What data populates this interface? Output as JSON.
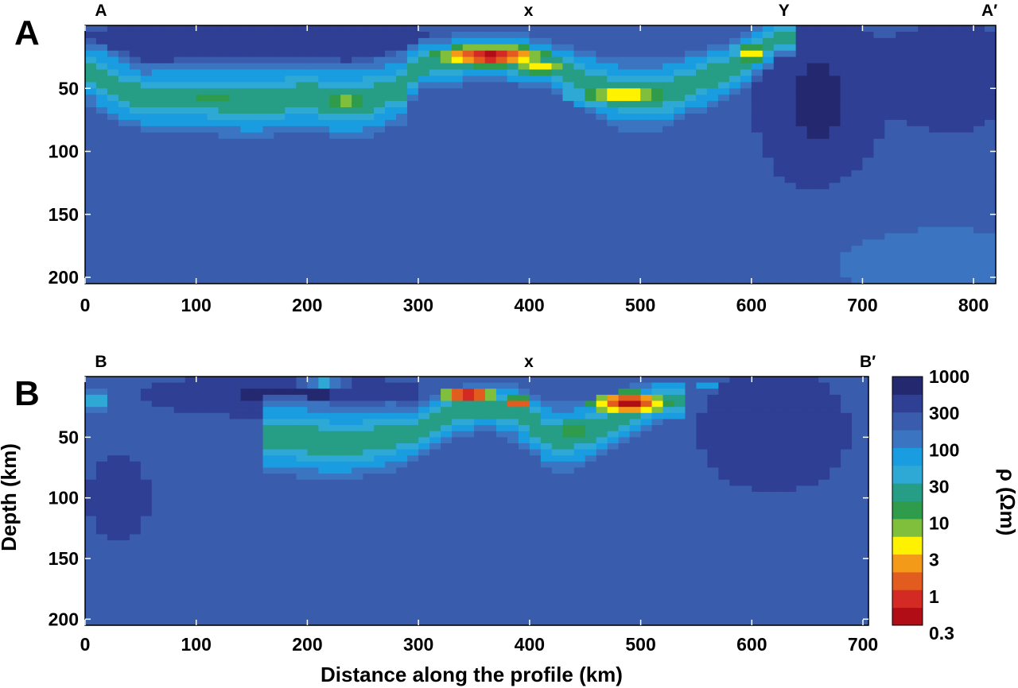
{
  "chart_data": [
    {
      "type": "heatmap",
      "panel_label": "A",
      "profile_marks": [
        {
          "label": "A",
          "x": 0
        },
        {
          "label": "x",
          "x": 385
        },
        {
          "label": "Y",
          "x": 615
        },
        {
          "label": "A′",
          "x": 800
        }
      ],
      "xlim": [
        0,
        820
      ],
      "ylim": [
        205,
        0
      ],
      "x_ticks": [
        0,
        100,
        200,
        300,
        400,
        500,
        600,
        700,
        800
      ],
      "y_ticks": [
        50,
        100,
        150,
        200
      ],
      "xlabel": "",
      "ylabel": "",
      "conductors": [
        {
          "x": [
            0,
            25,
            50,
            100,
            150,
            200,
            240,
            285,
            300,
            330,
            360,
            390,
            420,
            450,
            480,
            520,
            560,
            600,
            625
          ],
          "y": [
            35,
            48,
            58,
            57,
            60,
            56,
            62,
            50,
            32,
            28,
            24,
            27,
            32,
            45,
            55,
            55,
            42,
            25,
            10
          ],
          "w": [
            14,
            16,
            15,
            16,
            18,
            16,
            18,
            16,
            12,
            12,
            12,
            12,
            12,
            14,
            16,
            16,
            14,
            12,
            9
          ]
        }
      ],
      "blobs": [
        {
          "x": 365,
          "y": 24,
          "rx": 36,
          "ry": 6,
          "log10_rho": -0.4
        },
        {
          "x": 485,
          "y": 55,
          "rx": 40,
          "ry": 8,
          "log10_rho": 0.4
        },
        {
          "x": 410,
          "y": 34,
          "rx": 28,
          "ry": 5,
          "log10_rho": 0.5
        },
        {
          "x": 235,
          "y": 60,
          "rx": 22,
          "ry": 9,
          "log10_rho": 0.85
        },
        {
          "x": 115,
          "y": 58,
          "rx": 50,
          "ry": 8,
          "log10_rho": 1.15
        },
        {
          "x": 600,
          "y": 22,
          "rx": 16,
          "ry": 8,
          "log10_rho": 0.55
        }
      ],
      "resistive_zones": [
        {
          "x": 660,
          "y": 60,
          "rx": 40,
          "ry": 55,
          "log10_rho": 2.85
        },
        {
          "x": 780,
          "y": 40,
          "rx": 50,
          "ry": 35,
          "log10_rho": 2.7
        },
        {
          "x": 160,
          "y": 20,
          "rx": 150,
          "ry": 18,
          "log10_rho": 2.75
        },
        {
          "x": 770,
          "y": 190,
          "rx": 140,
          "ry": 45,
          "log10_rho": 2.15
        }
      ],
      "background_log10_rho": 2.45
    },
    {
      "type": "heatmap",
      "panel_label": "B",
      "profile_marks": [
        {
          "label": "B",
          "x": 0
        },
        {
          "label": "x",
          "x": 385
        },
        {
          "label": "B′",
          "x": 690
        }
      ],
      "xlim": [
        0,
        705
      ],
      "ylim": [
        205,
        0
      ],
      "x_ticks": [
        0,
        100,
        200,
        300,
        400,
        500,
        600,
        700
      ],
      "y_ticks": [
        50,
        100,
        150,
        200
      ],
      "xlabel": "Distance along the profile (km)",
      "ylabel": "Depth (km)",
      "conductors": [
        {
          "x": [
            180,
            230,
            280,
            300,
            330,
            360,
            390,
            420,
            440,
            470,
            500,
            520
          ],
          "y": [
            50,
            55,
            50,
            45,
            30,
            25,
            30,
            50,
            50,
            40,
            25,
            20
          ],
          "w": [
            18,
            18,
            16,
            12,
            12,
            12,
            14,
            16,
            16,
            14,
            12,
            10
          ]
        }
      ],
      "blobs": [
        {
          "x": 345,
          "y": 15,
          "rx": 20,
          "ry": 5,
          "log10_rho": -0.4
        },
        {
          "x": 390,
          "y": 22,
          "rx": 8,
          "ry": 4,
          "log10_rho": -0.2
        },
        {
          "x": 490,
          "y": 22,
          "rx": 25,
          "ry": 7,
          "log10_rho": -0.4
        },
        {
          "x": 440,
          "y": 45,
          "rx": 30,
          "ry": 12,
          "log10_rho": 1.0
        },
        {
          "x": 215,
          "y": 5,
          "rx": 18,
          "ry": 3,
          "log10_rho": 0.95
        },
        {
          "x": 10,
          "y": 20,
          "rx": 9,
          "ry": 10,
          "log10_rho": 1.1
        },
        {
          "x": 560,
          "y": 8,
          "rx": 8,
          "ry": 5,
          "log10_rho": 1.5
        }
      ],
      "resistive_zones": [
        {
          "x": 180,
          "y": 15,
          "rx": 120,
          "ry": 18,
          "log10_rho": 2.8
        },
        {
          "x": 620,
          "y": 45,
          "rx": 70,
          "ry": 50,
          "log10_rho": 2.75
        },
        {
          "x": 30,
          "y": 100,
          "rx": 40,
          "ry": 50,
          "log10_rho": 2.6
        }
      ],
      "background_log10_rho": 2.35
    }
  ],
  "colorbar": {
    "label": "ρ (Ωm)",
    "tick_labels": [
      "1000",
      "300",
      "100",
      "30",
      "10",
      "3",
      "1",
      "0.3"
    ],
    "log10_range": [
      -0.5,
      3.0
    ],
    "colors": [
      "#b00d16",
      "#d32a23",
      "#e35c1f",
      "#f39a19",
      "#fff200",
      "#7fbf3c",
      "#2e9c4a",
      "#269d85",
      "#2ea9d6",
      "#1a9de0",
      "#3b75c2",
      "#3a5cad",
      "#2f3f94",
      "#23286f"
    ]
  }
}
